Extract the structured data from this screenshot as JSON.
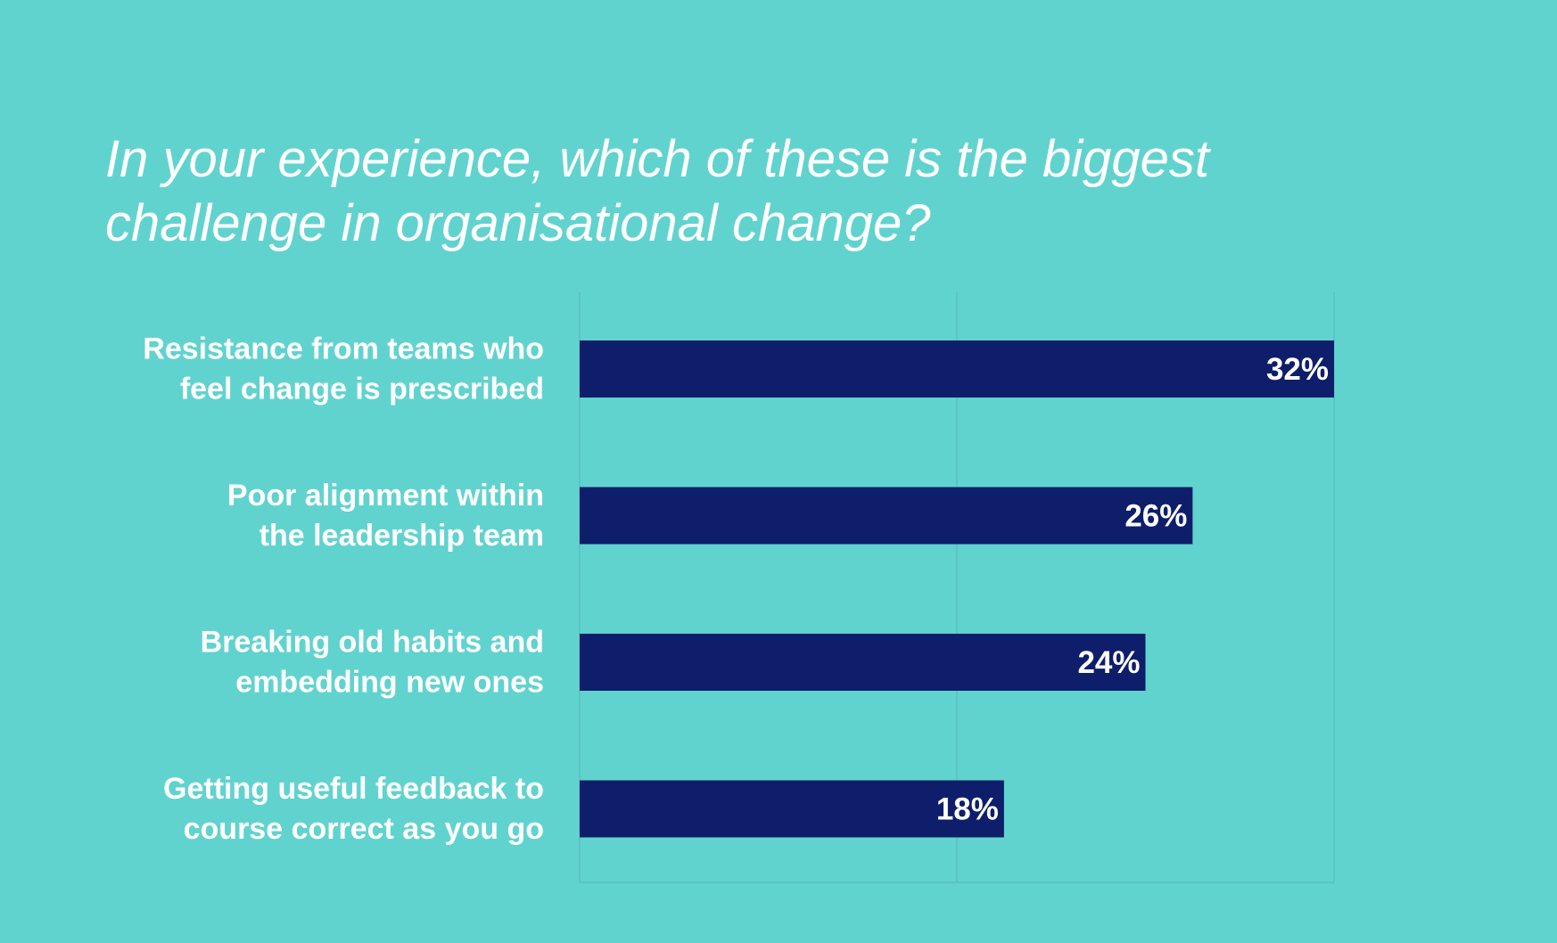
{
  "chart_data": {
    "type": "bar",
    "orientation": "horizontal",
    "title_lines": [
      "In your experience, which of these is the biggest",
      "challenge in organisational change?"
    ],
    "categories": [
      {
        "lines": [
          "Resistance from teams who",
          "feel change is prescribed"
        ]
      },
      {
        "lines": [
          "Poor alignment within",
          "the leadership team"
        ]
      },
      {
        "lines": [
          "Breaking old habits and",
          "embedding new ones"
        ]
      },
      {
        "lines": [
          "Getting useful feedback to",
          "course correct as you go"
        ]
      }
    ],
    "values": [
      32,
      26,
      24,
      18
    ],
    "value_labels": [
      "32%",
      "26%",
      "24%",
      "18%"
    ],
    "unit": "%",
    "xlim": [
      0,
      32
    ],
    "grid": "vertical",
    "legend": "none",
    "colors": {
      "background": "#61d3cf",
      "bar": "#0e1e6a",
      "text": "#ffffff",
      "grid": "#59c5c1"
    }
  }
}
